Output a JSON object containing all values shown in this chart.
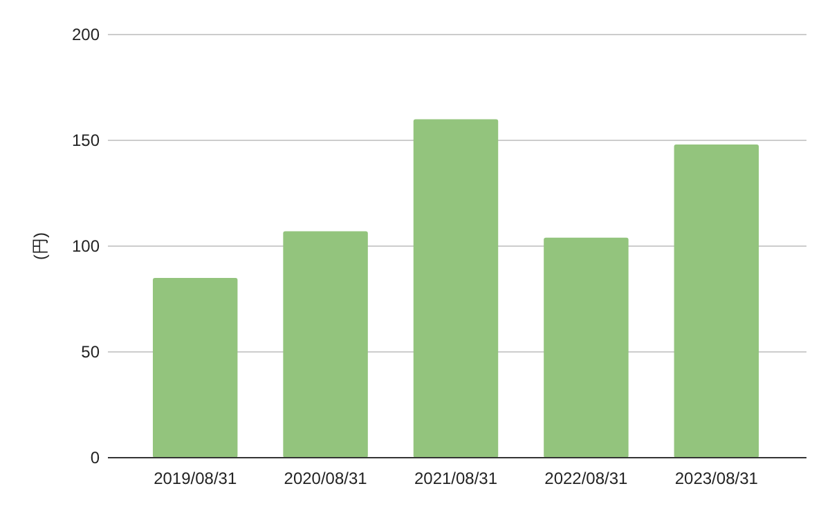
{
  "chart_data": {
    "type": "bar",
    "ylabel": "(円)",
    "categories": [
      "2019/08/31",
      "2020/08/31",
      "2021/08/31",
      "2022/08/31",
      "2023/08/31"
    ],
    "values": [
      85,
      107,
      160,
      104,
      148
    ],
    "color": "#93c47d",
    "ylim": [
      0,
      200
    ],
    "yticks": [
      0,
      50,
      100,
      150,
      200
    ],
    "grid": "y"
  }
}
